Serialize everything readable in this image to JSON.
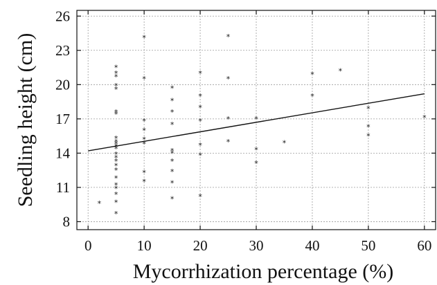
{
  "chart_data": {
    "type": "scatter",
    "xlabel": "Mycorrhization percentage (%)",
    "ylabel": "Seedling height (cm)",
    "xlim": [
      -2,
      62
    ],
    "ylim": [
      7.3,
      26.5
    ],
    "xticks": [
      0,
      10,
      20,
      30,
      40,
      50,
      60
    ],
    "yticks": [
      8,
      11,
      14,
      17,
      20,
      23,
      26
    ],
    "grid": true,
    "marker": "*",
    "points": [
      [
        2,
        9.6
      ],
      [
        5,
        21.5
      ],
      [
        5,
        21.0
      ],
      [
        5,
        20.7
      ],
      [
        5,
        19.9
      ],
      [
        5,
        19.6
      ],
      [
        5,
        17.6
      ],
      [
        5,
        17.4
      ],
      [
        5,
        15.3
      ],
      [
        5,
        15.0
      ],
      [
        5,
        14.8
      ],
      [
        5,
        14.6
      ],
      [
        5,
        14.4
      ],
      [
        5,
        13.9
      ],
      [
        5,
        13.6
      ],
      [
        5,
        13.3
      ],
      [
        5,
        12.9
      ],
      [
        5,
        12.5
      ],
      [
        5,
        11.8
      ],
      [
        5,
        11.2
      ],
      [
        5,
        10.9
      ],
      [
        5,
        10.4
      ],
      [
        5,
        9.7
      ],
      [
        5,
        8.7
      ],
      [
        10,
        24.1
      ],
      [
        10,
        20.5
      ],
      [
        10,
        16.8
      ],
      [
        10,
        16.0
      ],
      [
        10,
        15.2
      ],
      [
        10,
        14.8
      ],
      [
        10,
        12.3
      ],
      [
        10,
        11.5
      ],
      [
        15,
        19.7
      ],
      [
        15,
        18.6
      ],
      [
        15,
        17.6
      ],
      [
        15,
        16.5
      ],
      [
        15,
        14.2
      ],
      [
        15,
        14.0
      ],
      [
        15,
        13.3
      ],
      [
        15,
        12.4
      ],
      [
        15,
        11.4
      ],
      [
        15,
        10.0
      ],
      [
        20,
        21.0
      ],
      [
        20,
        19.0
      ],
      [
        20,
        18.0
      ],
      [
        20,
        16.8
      ],
      [
        20,
        14.7
      ],
      [
        20,
        13.8
      ],
      [
        20,
        10.2
      ],
      [
        25,
        24.2
      ],
      [
        25,
        20.5
      ],
      [
        25,
        17.0
      ],
      [
        25,
        15.0
      ],
      [
        30,
        17.0
      ],
      [
        30,
        14.3
      ],
      [
        30,
        13.1
      ],
      [
        35,
        14.9
      ],
      [
        40,
        20.9
      ],
      [
        40,
        19.0
      ],
      [
        45,
        21.2
      ],
      [
        50,
        17.9
      ],
      [
        50,
        16.3
      ],
      [
        50,
        15.5
      ],
      [
        60,
        17.1
      ]
    ],
    "trendline": {
      "type": "linear",
      "x": [
        0,
        60
      ],
      "y": [
        14.2,
        19.2
      ]
    }
  }
}
